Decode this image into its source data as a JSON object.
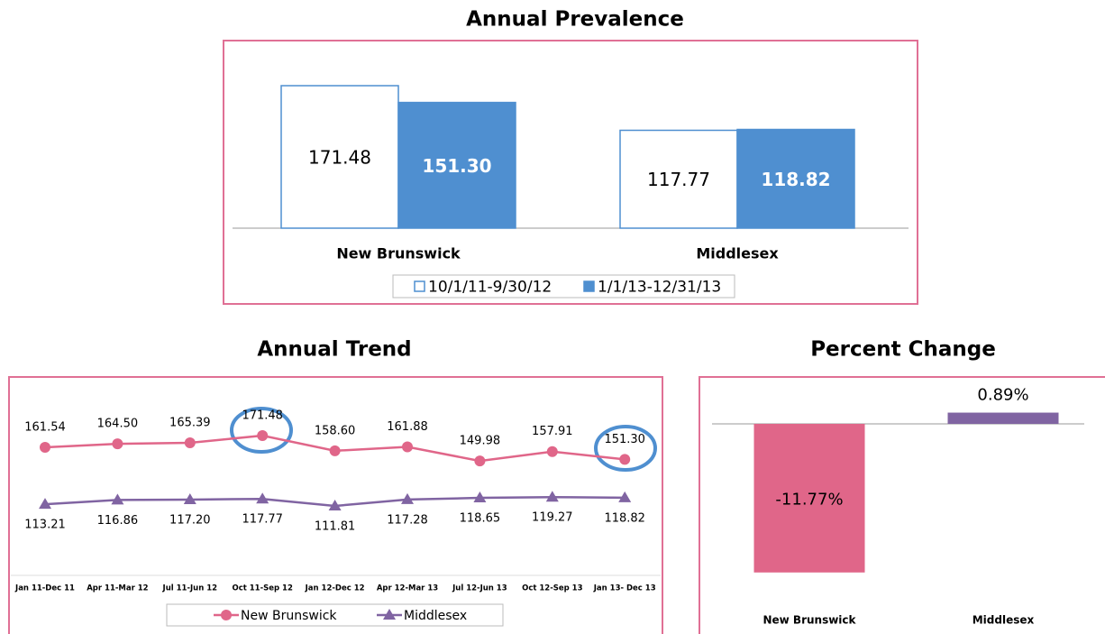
{
  "chart_data": [
    {
      "type": "bar",
      "title": "Annual Prevalence",
      "categories": [
        "New Brunswick",
        "Middlesex"
      ],
      "series": [
        {
          "name": "10/1/11-9/30/12",
          "color": "#ffffff",
          "edgecolor": "#4f8fd0",
          "values": [
            171.48,
            117.77
          ],
          "value_labels": [
            "171.48",
            "117.77"
          ]
        },
        {
          "name": "1/1/13-12/31/13",
          "color": "#4f8fd0",
          "values": [
            151.3,
            118.82
          ],
          "value_labels": [
            "151.30",
            "118.82"
          ]
        }
      ]
    },
    {
      "type": "line",
      "title": "Annual Trend",
      "categories": [
        "Jan 11-Dec 11",
        "Apr 11-Mar 12",
        "Jul 11-Jun 12",
        "Oct 11-Sep 12",
        "Jan 12-Dec 12",
        "Apr 12-Mar 13",
        "Jul 12-Jun 13",
        "Oct 12-Sep 13",
        "Jan 13- Dec 13"
      ],
      "series": [
        {
          "name": "New Brunswick",
          "color": "#e06689",
          "marker": "circle",
          "values": [
            161.54,
            164.5,
            165.39,
            171.48,
            158.6,
            161.88,
            149.98,
            157.91,
            151.3
          ],
          "value_labels": [
            "161.54",
            "164.50",
            "165.39",
            "171.48",
            "158.60",
            "161.88",
            "149.98",
            "157.91",
            "151.30"
          ]
        },
        {
          "name": "Middlesex",
          "color": "#8064a2",
          "marker": "triangle",
          "values": [
            113.21,
            116.86,
            117.2,
            117.77,
            111.81,
            117.28,
            118.65,
            119.27,
            118.82
          ],
          "value_labels": [
            "113.21",
            "116.86",
            "117.20",
            "117.77",
            "111.81",
            "117.28",
            "118.65",
            "119.27",
            "118.82"
          ]
        }
      ]
    },
    {
      "type": "bar",
      "title": "Percent Change",
      "categories": [
        "New Brunswick",
        "Middlesex"
      ],
      "values": [
        -11.77,
        0.89
      ],
      "value_labels": [
        "-11.77%",
        "0.89%"
      ],
      "colors": [
        "#e06689",
        "#8064a2"
      ]
    }
  ]
}
